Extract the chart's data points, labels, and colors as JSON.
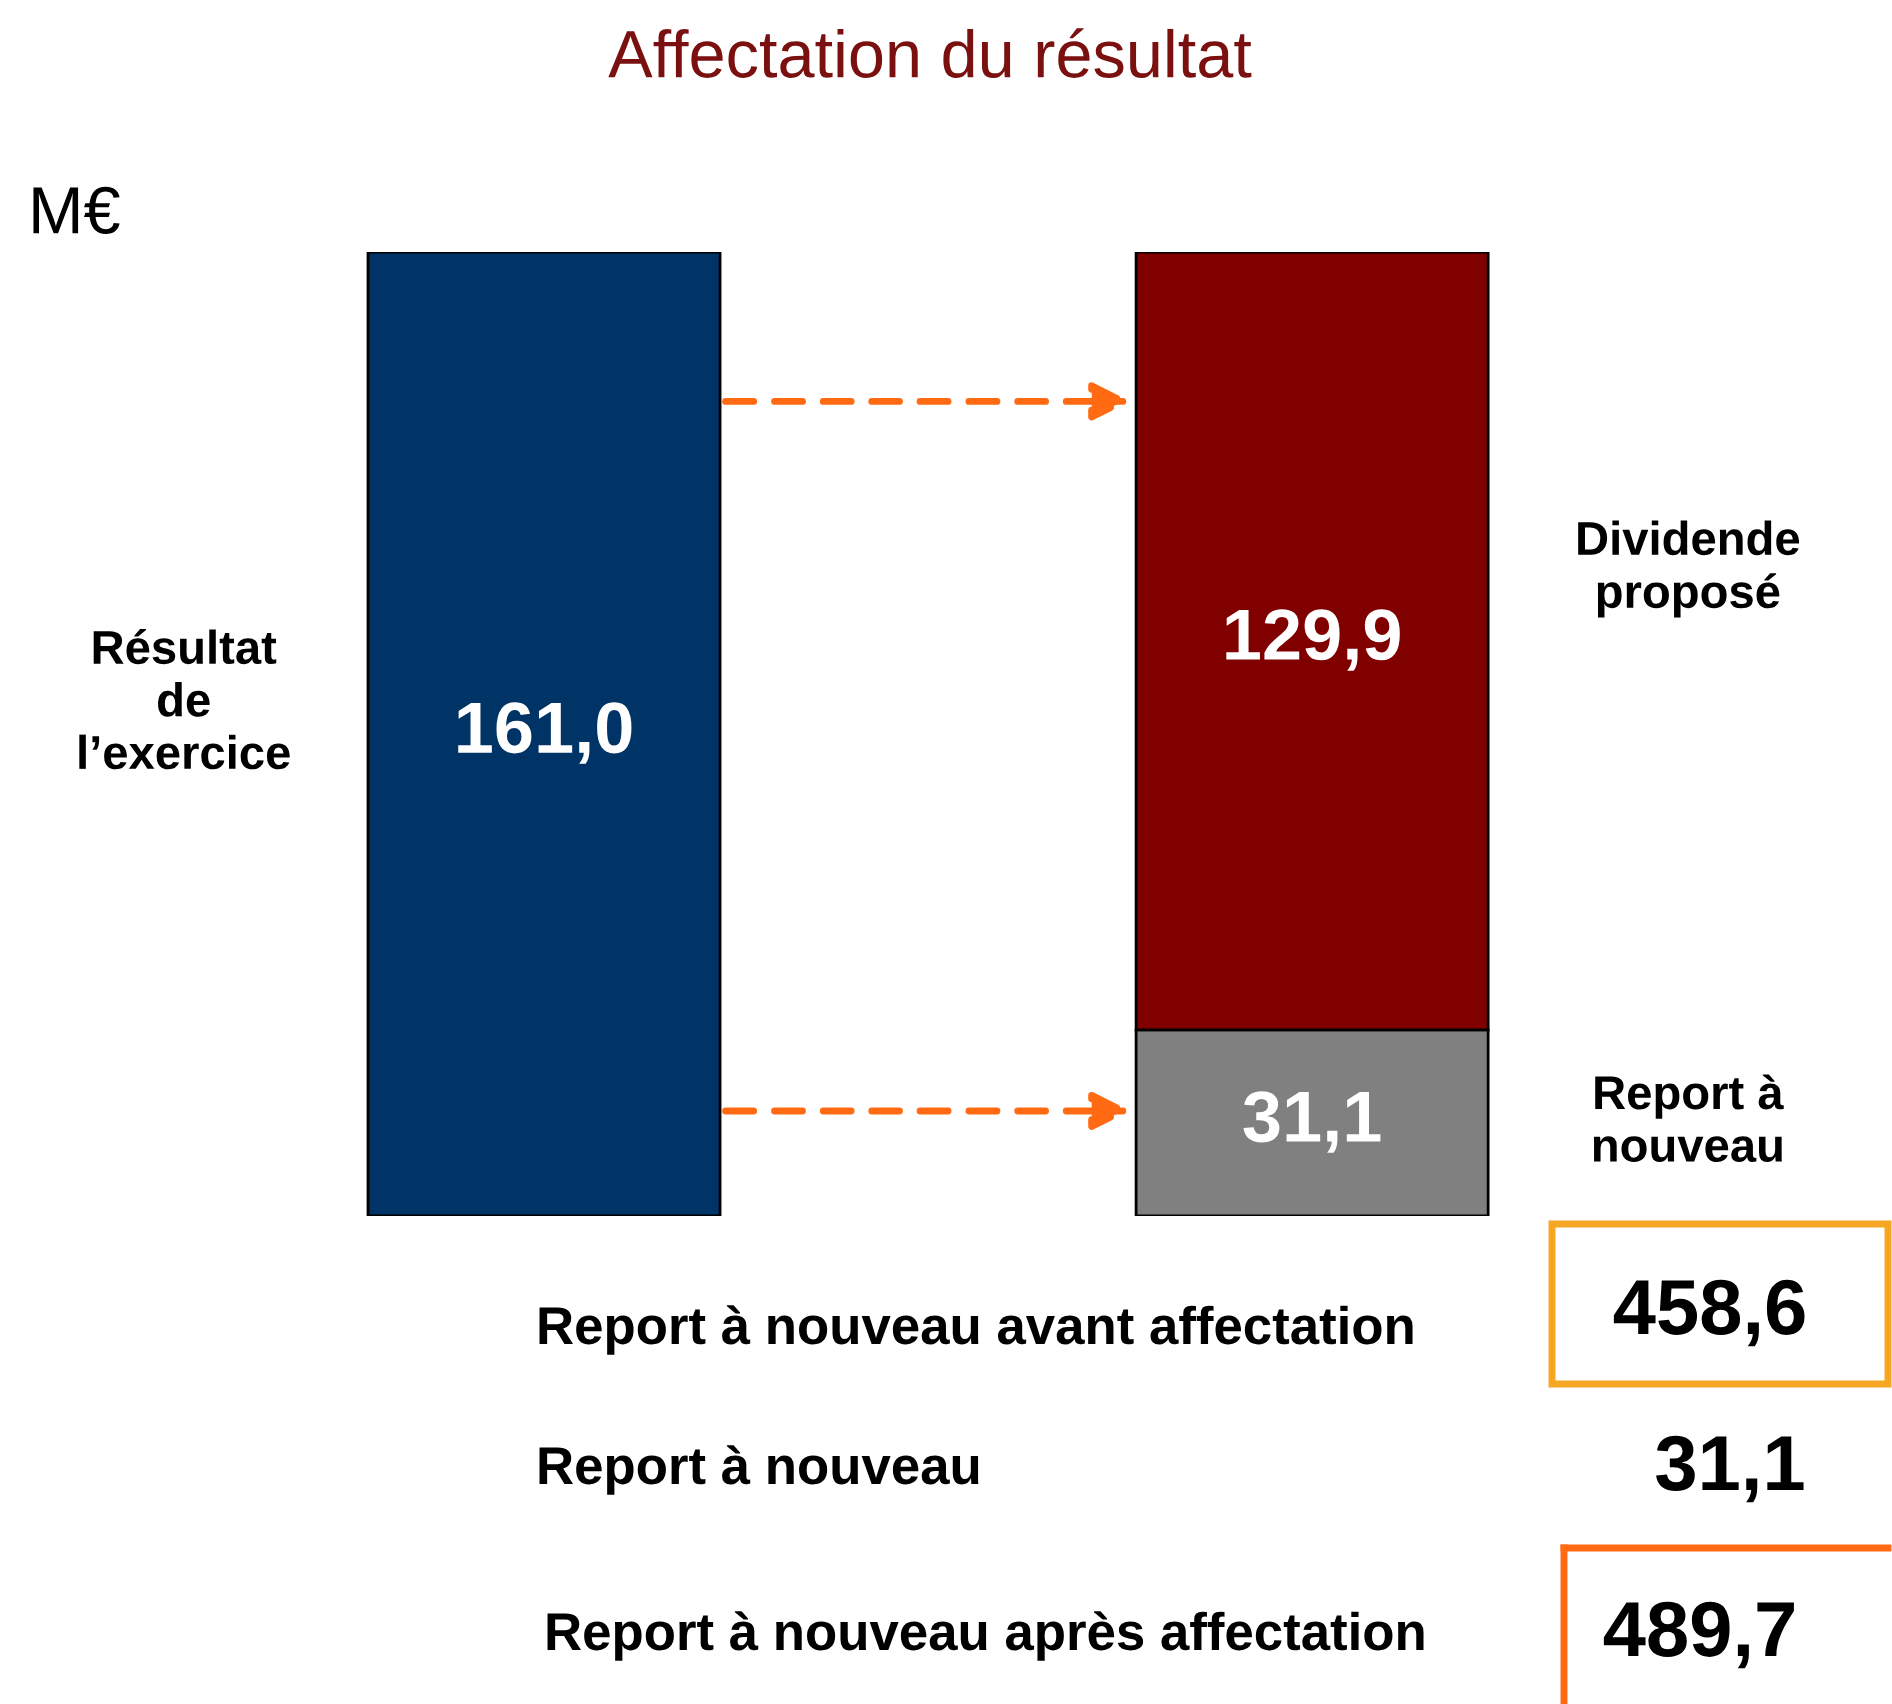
{
  "chart_data": {
    "type": "bar",
    "title": "Affectation du résultat",
    "stacked": true,
    "categories": [
      null,
      null
    ],
    "series": [
      {
        "name": "Résultat\nde\nl’exercice",
        "color": "#003366",
        "values": [
          161.0,
          null
        ],
        "value_labels": [
          "161,0",
          null
        ]
      },
      {
        "name": "Report à\nnouveau",
        "color": "#808080",
        "values": [
          null,
          31.1
        ],
        "value_labels": [
          null,
          "31,1"
        ]
      },
      {
        "name": "Dividende\nproposé",
        "color": "#800000",
        "values": [
          null,
          129.9
        ],
        "value_labels": [
          null,
          "129,9"
        ]
      }
    ],
    "annotations": [
      "M€",
      "Report à nouveau avant affectation",
      "458,6",
      "Report à nouveau",
      "31,1",
      "Report à nouveau après affectation",
      "489,7"
    ]
  }
}
